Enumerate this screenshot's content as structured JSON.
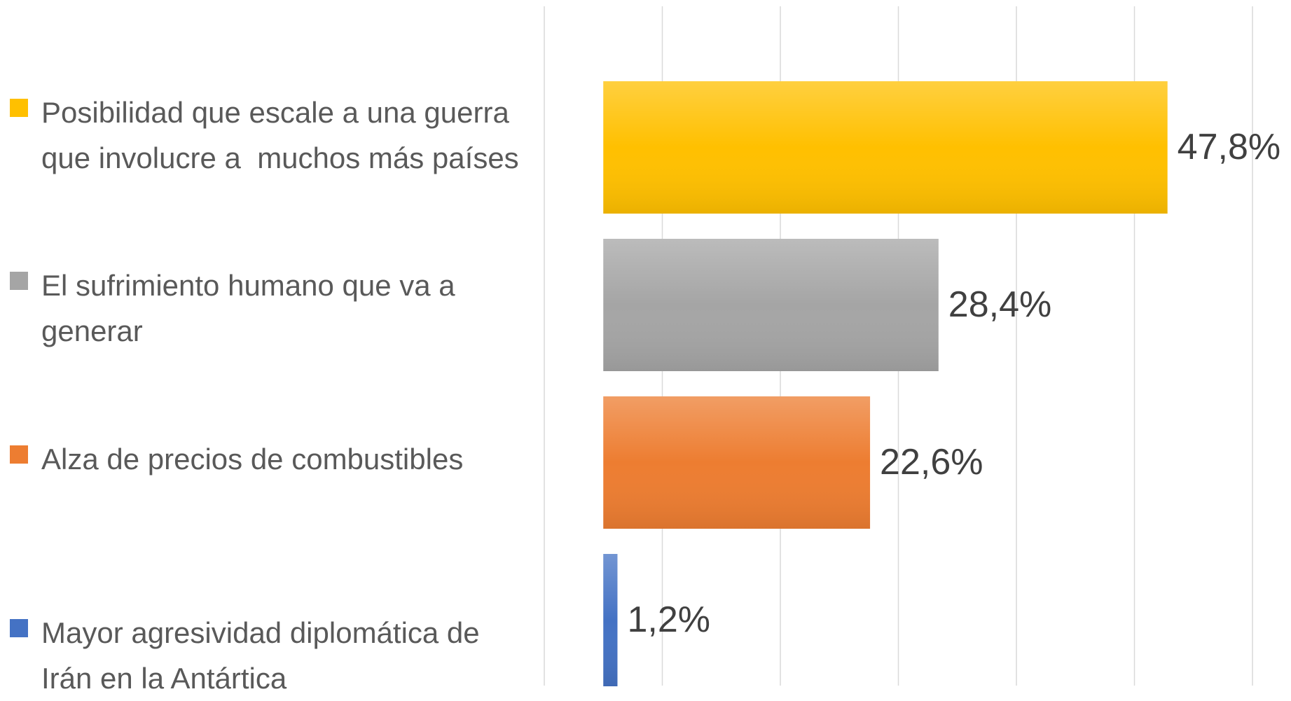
{
  "chart_data": {
    "type": "hbar",
    "categories": [
      "Posibilidad que escale a una guerra\nque involucre a  muchos más países",
      "El sufrimiento humano que va a\ngenerar",
      "Alza de precios de combustibles",
      "Mayor agresividad diplomática de\nIrán en la Antártica"
    ],
    "values": [
      47.8,
      28.4,
      22.6,
      1.2
    ],
    "value_labels": [
      "47,8%",
      "28,4%",
      "22,6%",
      "1,2%"
    ],
    "colors": [
      "#ffc000",
      "#a5a5a5",
      "#ed7d31",
      "#4472c4"
    ],
    "xlim": [
      -5,
      55
    ],
    "xticks": [
      -5,
      5,
      15,
      25,
      35,
      45,
      55
    ],
    "grid": true,
    "legend": "left"
  }
}
